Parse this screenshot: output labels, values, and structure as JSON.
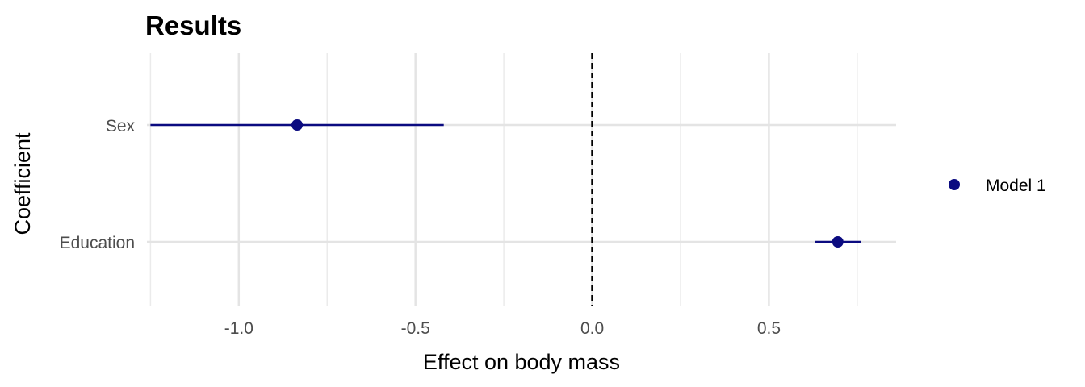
{
  "chart_data": {
    "type": "coefficient-plot",
    "title": "Results",
    "xlabel": "Effect on body mass",
    "ylabel": "Coefficient",
    "xlim": [
      -1.26,
      0.86
    ],
    "x_ticks": [
      -1.0,
      -0.5,
      0.0,
      0.5
    ],
    "x_tick_labels": [
      "-1.0",
      "-0.5",
      "0.0",
      "0.5"
    ],
    "categories": [
      "Sex",
      "Education"
    ],
    "reference_line": 0.0,
    "grid": true,
    "legend_position": "right",
    "series": [
      {
        "name": "Model 1",
        "color": "#0b0b80",
        "points": [
          {
            "category": "Sex",
            "estimate": -0.835,
            "ci_low": -1.25,
            "ci_high": -0.42
          },
          {
            "category": "Education",
            "estimate": 0.695,
            "ci_low": 0.63,
            "ci_high": 0.76
          }
        ]
      }
    ]
  }
}
